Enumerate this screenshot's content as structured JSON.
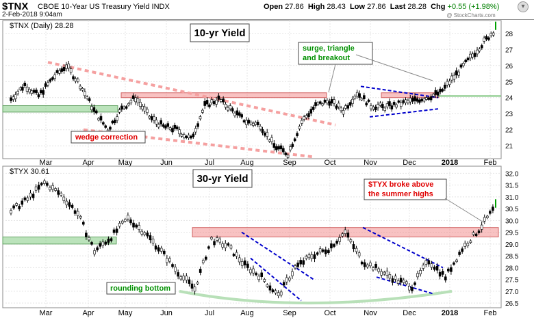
{
  "header": {
    "symbol": "$TNX",
    "description": "CBOE 10-Year US Treasury Yield",
    "exchange": "INDX",
    "date_time": "2-Feb-2018 9:04am",
    "open_label": "Open",
    "open": "27.86",
    "high_label": "High",
    "high": "28.43",
    "low_label": "Low",
    "low": "27.86",
    "last_label": "Last",
    "last": "28.28",
    "chg_label": "Chg",
    "chg": "+0.55 (+1.98%)",
    "chg_color": "#008000",
    "watermark": "@ StockCharts.com"
  },
  "months": [
    "Mar",
    "Apr",
    "May",
    "Jun",
    "Jul",
    "Aug",
    "Sep",
    "Oct",
    "Nov",
    "Dec",
    "2018",
    "Feb"
  ],
  "chart_data": [
    {
      "type": "candlestick",
      "legend": "$TNX (Daily) 28.28",
      "title": "10-yr Yield",
      "ylim": [
        20.2,
        28.8
      ],
      "yticks": [
        21,
        22,
        23,
        24,
        25,
        26,
        27,
        28
      ],
      "price_path": [
        [
          "Feb",
          23.9
        ],
        [
          "Feb",
          24.8
        ],
        [
          "Feb",
          24.1
        ],
        [
          "Mar",
          25.2
        ],
        [
          "Mar",
          26.0
        ],
        [
          "Mar",
          24.8
        ],
        [
          "Apr",
          23.2
        ],
        [
          "Apr",
          22.0
        ],
        [
          "Apr",
          23.3
        ],
        [
          "May",
          24.0
        ],
        [
          "May",
          22.8
        ],
        [
          "Jun",
          22.2
        ],
        [
          "Jun",
          22.0
        ],
        [
          "Jun",
          21.4
        ],
        [
          "Jul",
          23.5
        ],
        [
          "Jul",
          23.9
        ],
        [
          "Aug",
          23.2
        ],
        [
          "Aug",
          22.5
        ],
        [
          "Aug",
          22.3
        ],
        [
          "Sep",
          21.0
        ],
        [
          "Sep",
          20.5
        ],
        [
          "Sep",
          22.5
        ],
        [
          "Oct",
          23.5
        ],
        [
          "Oct",
          23.8
        ],
        [
          "Oct",
          23.2
        ],
        [
          "Nov",
          24.3
        ],
        [
          "Nov",
          23.5
        ],
        [
          "Nov",
          23.4
        ],
        [
          "Dec",
          23.6
        ],
        [
          "Dec",
          23.8
        ],
        [
          "Dec",
          24.0
        ],
        [
          "2018",
          24.3
        ],
        [
          "2018",
          25.3
        ],
        [
          "2018",
          26.3
        ],
        [
          "Feb",
          27.3
        ],
        [
          "Feb",
          28.3
        ]
      ],
      "annotations": [
        "surge, triangle",
        "and breakout",
        "wedge correction"
      ],
      "support_level": 24.1,
      "resistance_zone": [
        24.0,
        24.3
      ],
      "left_zone": [
        23.1,
        23.5
      ]
    },
    {
      "type": "candlestick",
      "legend": "$TYX 30.61",
      "title": "30-yr Yield",
      "ylim": [
        26.3,
        32.3
      ],
      "yticks": [
        26.5,
        27.0,
        27.5,
        28.0,
        28.5,
        29.0,
        29.5,
        30.0,
        30.5,
        31.0,
        31.5,
        32.0
      ],
      "price_path": [
        [
          "Feb",
          30.4
        ],
        [
          "Feb",
          30.9
        ],
        [
          "Mar",
          31.6
        ],
        [
          "Mar",
          31.1
        ],
        [
          "Mar",
          30.3
        ],
        [
          "Apr",
          28.7
        ],
        [
          "Apr",
          29.3
        ],
        [
          "May",
          30.1
        ],
        [
          "May",
          29.5
        ],
        [
          "Jun",
          28.7
        ],
        [
          "Jun",
          27.8
        ],
        [
          "Jun",
          27.1
        ],
        [
          "Jul",
          29.2
        ],
        [
          "Jul",
          28.9
        ],
        [
          "Aug",
          28.1
        ],
        [
          "Aug",
          27.6
        ],
        [
          "Sep",
          26.8
        ],
        [
          "Sep",
          28.0
        ],
        [
          "Oct",
          28.5
        ],
        [
          "Oct",
          28.8
        ],
        [
          "Nov",
          29.5
        ],
        [
          "Nov",
          28.3
        ],
        [
          "Nov",
          27.9
        ],
        [
          "Dec",
          27.5
        ],
        [
          "Dec",
          27.2
        ],
        [
          "Dec",
          28.3
        ],
        [
          "2018",
          27.6
        ],
        [
          "2018",
          28.8
        ],
        [
          "Feb",
          29.6
        ],
        [
          "Feb",
          30.6
        ]
      ],
      "annotations": [
        "$TYX broke above",
        "the summer highs",
        "rounding bottom"
      ],
      "resistance_zone": [
        29.3,
        29.7
      ],
      "left_zone": [
        29.0,
        29.3
      ]
    }
  ]
}
